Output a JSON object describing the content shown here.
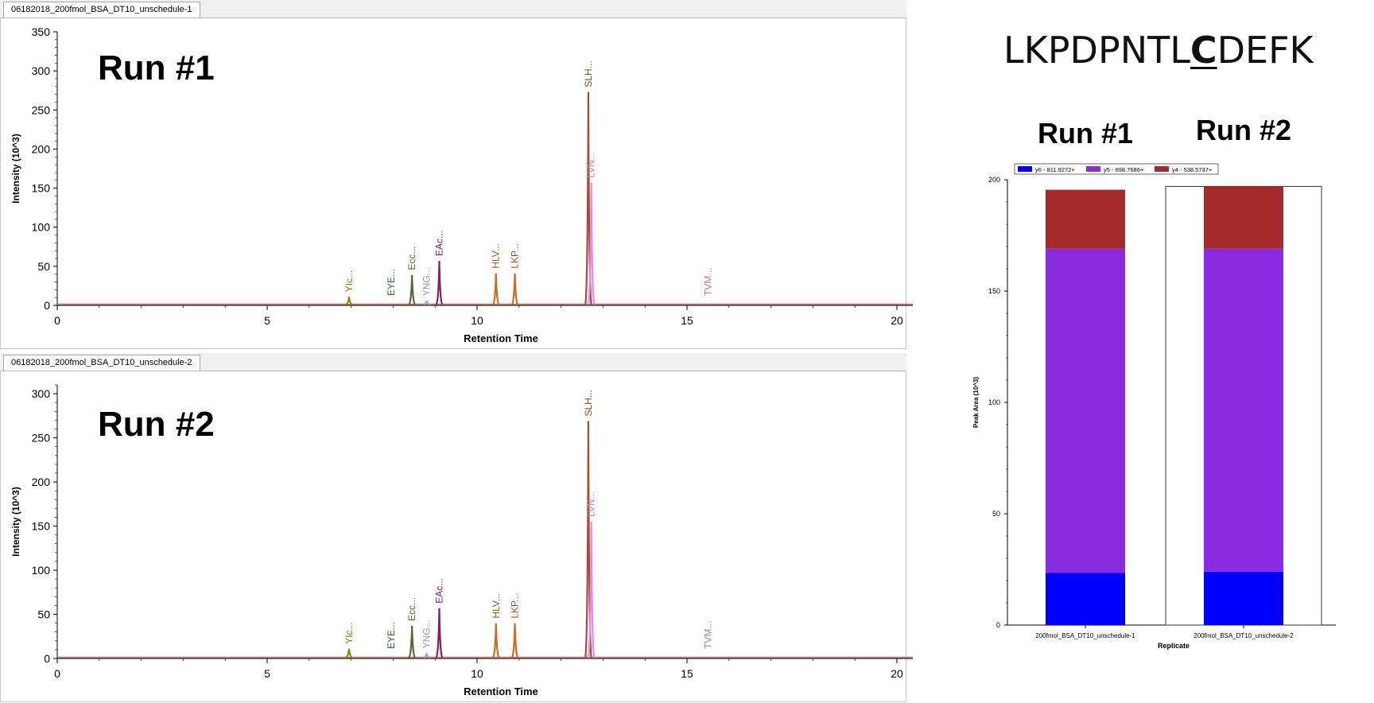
{
  "peptide": {
    "pre": "LKPDPNTL",
    "highlight": "C",
    "post": "DEFK"
  },
  "chromatograms": [
    {
      "tab": "06182018_200fmol_BSA_DT10_unschedule-1",
      "run_label": "Run #1",
      "y_ticks": [
        "0",
        "50",
        "100",
        "150",
        "200",
        "250",
        "300",
        "350"
      ],
      "ylim": [
        0,
        350
      ]
    },
    {
      "tab": "06182018_200fmol_BSA_DT10_unschedule-2",
      "run_label": "Run #2",
      "y_ticks": [
        "0",
        "50",
        "100",
        "150",
        "200",
        "250",
        "300"
      ],
      "ylim": [
        0,
        310
      ]
    }
  ],
  "bar_panel": {
    "run_labels": [
      "Run #1",
      "Run #2"
    ]
  },
  "chart_data": [
    {
      "type": "line",
      "title": "",
      "xlabel": "Retention Time",
      "ylabel": "Intensity (10^3)",
      "xlim": [
        0,
        20
      ],
      "ylim": [
        0,
        350
      ],
      "x_ticks": [
        "0",
        "5",
        "10",
        "15",
        "20"
      ],
      "peaks": [
        {
          "label": "YIc...",
          "rt": 6.95,
          "height": 11,
          "color": "#8b8b00",
          "label_color": "#8b7500"
        },
        {
          "label": "EYE...",
          "rt": 7.95,
          "height": 0,
          "color": "#2e6b2e",
          "label_color": "#2e6b2e"
        },
        {
          "label": "Ecc...",
          "rt": 8.45,
          "height": 39,
          "color": "#556b2f",
          "label_color": "#556b2f"
        },
        {
          "label": "YNG...",
          "rt": 8.8,
          "height": 6,
          "color": "#9aa8e0",
          "label_color": "#8f9ad6"
        },
        {
          "label": "EAc...",
          "rt": 9.1,
          "height": 57,
          "color": "#8b1c62",
          "label_color": "#8b1c62"
        },
        {
          "label": "HLV...",
          "rt": 10.45,
          "height": 41,
          "color": "#d2691e",
          "label_color": "#a0522d"
        },
        {
          "label": "LKP...",
          "rt": 10.9,
          "height": 41,
          "color": "#d2691e",
          "label_color": "#a0522d"
        },
        {
          "label": "SLH...",
          "rt": 12.65,
          "height": 273,
          "color": "#a0522d",
          "label_color": "#8b4513"
        },
        {
          "label": "LVN...",
          "rt": 12.72,
          "height": 157,
          "color": "#ee82ee",
          "label_color": "#cc77cc"
        },
        {
          "label": "TVM...",
          "rt": 15.5,
          "height": 0,
          "color": "#cc77cc",
          "label_color": "#b07ab0"
        }
      ]
    },
    {
      "type": "line",
      "title": "",
      "xlabel": "Retention Time",
      "ylabel": "Intensity (10^3)",
      "xlim": [
        0,
        20
      ],
      "ylim": [
        0,
        310
      ],
      "x_ticks": [
        "0",
        "5",
        "10",
        "15",
        "20"
      ],
      "peaks": [
        {
          "label": "YIc...",
          "rt": 6.95,
          "height": 11,
          "color": "#8b8b00",
          "label_color": "#8b7500"
        },
        {
          "label": "EYE...",
          "rt": 7.95,
          "height": 0,
          "color": "#2e6b2e",
          "label_color": "#2e6b2e"
        },
        {
          "label": "Ecc...",
          "rt": 8.45,
          "height": 37,
          "color": "#556b2f",
          "label_color": "#556b2f"
        },
        {
          "label": "YNG...",
          "rt": 8.8,
          "height": 6,
          "color": "#9aa8e0",
          "label_color": "#8f9ad6"
        },
        {
          "label": "EAc...",
          "rt": 9.1,
          "height": 57,
          "color": "#8b1c62",
          "label_color": "#8b1c62"
        },
        {
          "label": "HLV...",
          "rt": 10.45,
          "height": 40,
          "color": "#d2691e",
          "label_color": "#a0522d"
        },
        {
          "label": "LKP...",
          "rt": 10.9,
          "height": 40,
          "color": "#d2691e",
          "label_color": "#a0522d"
        },
        {
          "label": "SLH...",
          "rt": 12.65,
          "height": 269,
          "color": "#a0522d",
          "label_color": "#8b4513"
        },
        {
          "label": "LVN...",
          "rt": 12.72,
          "height": 155,
          "color": "#ee82ee",
          "label_color": "#cc77cc"
        },
        {
          "label": "TVM...",
          "rt": 15.5,
          "height": 0,
          "color": "#cc77cc",
          "label_color": "#b07ab0"
        }
      ]
    },
    {
      "type": "bar",
      "stacked": true,
      "xlabel": "Replicate",
      "ylabel": "Peak Area (10^3)",
      "ylim": [
        0,
        200
      ],
      "y_ticks": [
        "0",
        "50",
        "100",
        "150",
        "200"
      ],
      "categories": [
        "200fmol_BSA_DT10_unschedule-1",
        "200fmol_BSA_DT10_unschedule-2"
      ],
      "selected_category": 1,
      "series": [
        {
          "name": "y6 - 811.9272+",
          "color": "#0000ff",
          "values": [
            23.5,
            24
          ]
        },
        {
          "name": "y5 - 698.7686+",
          "color": "#8a2be2",
          "values": [
            145.5,
            145
          ]
        },
        {
          "name": "y4 - 538.5737+",
          "color": "#a52a2a",
          "values": [
            26.5,
            28
          ]
        }
      ]
    }
  ]
}
